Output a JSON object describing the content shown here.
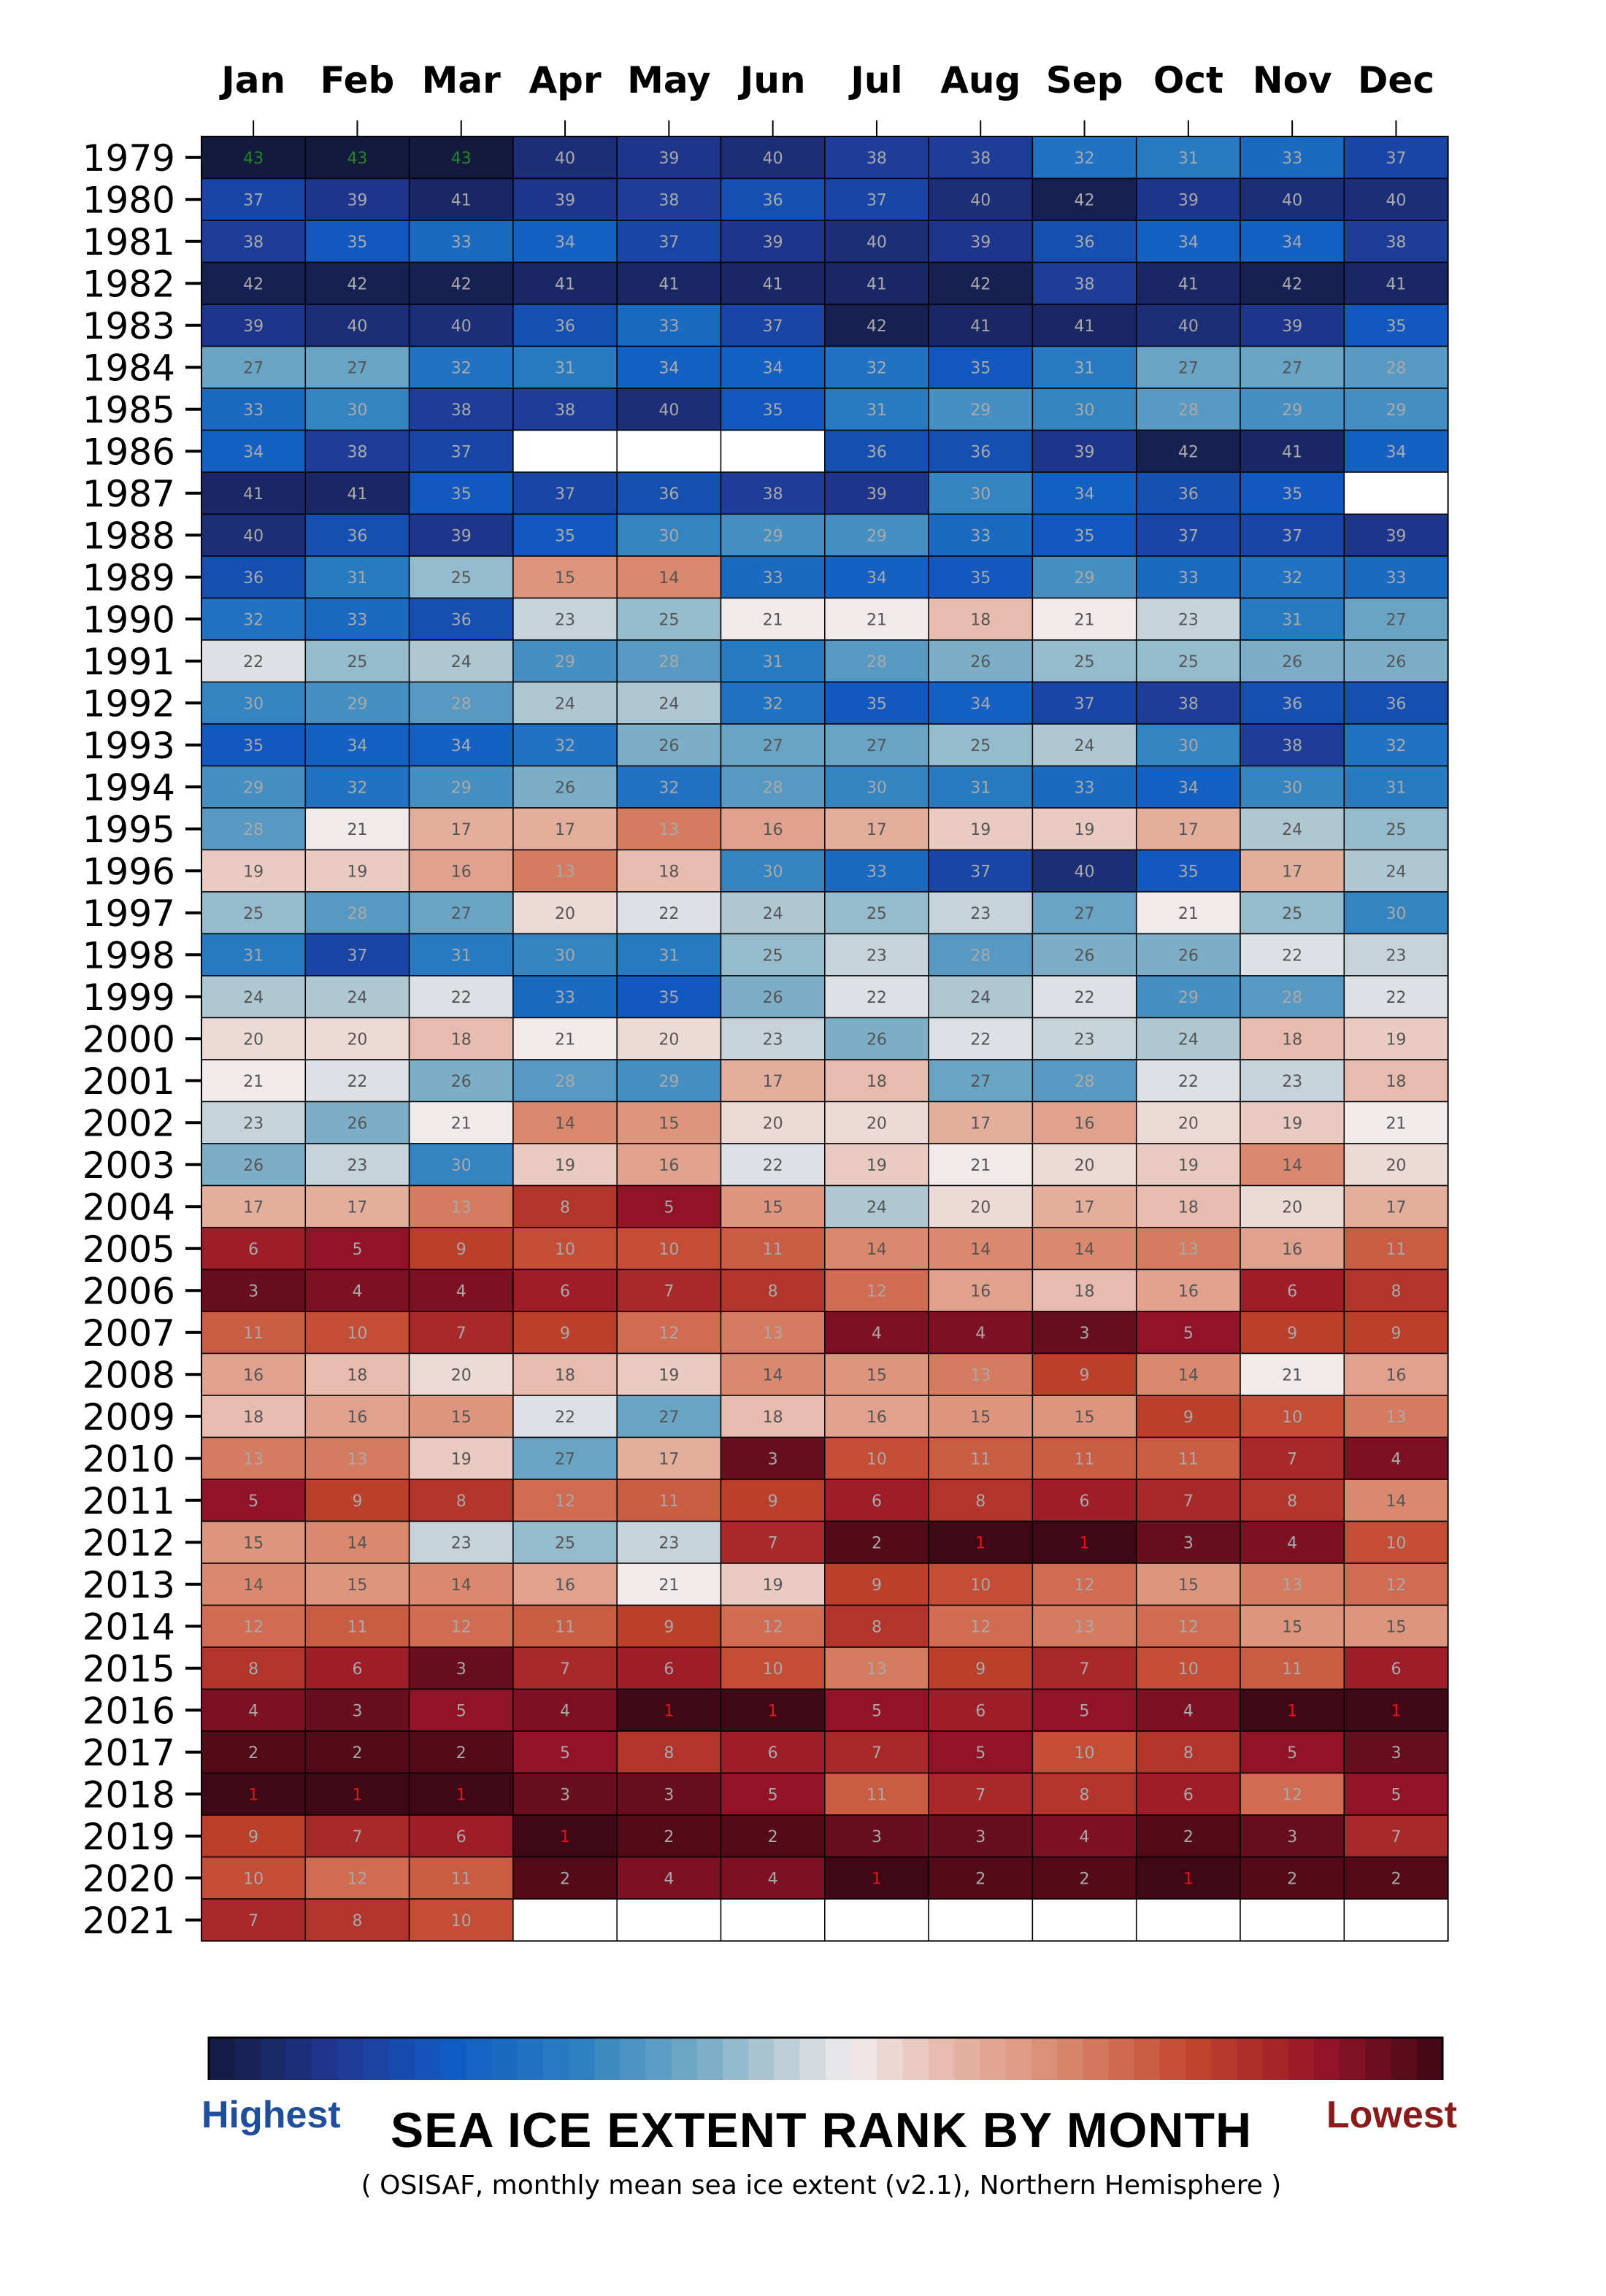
{
  "title": "SEA ICE EXTENT RANK BY MONTH",
  "subtitle": "( OSISAF, monthly mean sea ice extent (v2.1), Northern Hemisphere )",
  "legend": {
    "left_label": "Highest",
    "right_label": "Lowest"
  },
  "colors": {
    "highest_ink": "#1f4e9c",
    "lowest_ink": "#8b1a1a",
    "rank_max_text": "#1f8a1f",
    "rank_min_text": "#e8141a",
    "missing": "#ffffff"
  },
  "chart_data": {
    "type": "heatmap",
    "title": "SEA ICE EXTENT RANK BY MONTH",
    "subtitle": "( OSISAF, monthly mean sea ice extent (v2.1), Northern Hemisphere )",
    "x": [
      "Jan",
      "Feb",
      "Mar",
      "Apr",
      "May",
      "Jun",
      "Jul",
      "Aug",
      "Sep",
      "Oct",
      "Nov",
      "Dec"
    ],
    "y": [
      "1979",
      "1980",
      "1981",
      "1982",
      "1983",
      "1984",
      "1985",
      "1986",
      "1987",
      "1988",
      "1989",
      "1990",
      "1991",
      "1992",
      "1993",
      "1994",
      "1995",
      "1996",
      "1997",
      "1998",
      "1999",
      "2000",
      "2001",
      "2002",
      "2003",
      "2004",
      "2005",
      "2006",
      "2007",
      "2008",
      "2009",
      "2010",
      "2011",
      "2012",
      "2013",
      "2014",
      "2015",
      "2016",
      "2017",
      "2018",
      "2019",
      "2020",
      "2021"
    ],
    "values": [
      [
        43,
        43,
        43,
        40,
        39,
        40,
        38,
        38,
        32,
        31,
        33,
        37
      ],
      [
        37,
        39,
        41,
        39,
        38,
        36,
        37,
        40,
        42,
        39,
        40,
        40
      ],
      [
        38,
        35,
        33,
        34,
        37,
        39,
        40,
        39,
        36,
        34,
        34,
        38
      ],
      [
        42,
        42,
        42,
        41,
        41,
        41,
        41,
        42,
        38,
        41,
        42,
        41
      ],
      [
        39,
        40,
        40,
        36,
        33,
        37,
        42,
        41,
        41,
        40,
        39,
        35
      ],
      [
        27,
        27,
        32,
        31,
        34,
        34,
        32,
        35,
        31,
        27,
        27,
        28
      ],
      [
        33,
        30,
        38,
        38,
        40,
        35,
        31,
        29,
        30,
        28,
        29,
        29
      ],
      [
        34,
        38,
        37,
        null,
        null,
        null,
        36,
        36,
        39,
        42,
        41,
        34
      ],
      [
        41,
        41,
        35,
        37,
        36,
        38,
        39,
        30,
        34,
        36,
        35,
        null
      ],
      [
        40,
        36,
        39,
        35,
        30,
        29,
        29,
        33,
        35,
        37,
        37,
        39
      ],
      [
        36,
        31,
        25,
        15,
        14,
        33,
        34,
        35,
        29,
        33,
        32,
        33
      ],
      [
        32,
        33,
        36,
        23,
        25,
        21,
        21,
        18,
        21,
        23,
        31,
        27
      ],
      [
        22,
        25,
        24,
        29,
        28,
        31,
        28,
        26,
        25,
        25,
        26,
        26
      ],
      [
        30,
        29,
        28,
        24,
        24,
        32,
        35,
        34,
        37,
        38,
        36,
        36
      ],
      [
        35,
        34,
        34,
        32,
        26,
        27,
        27,
        25,
        24,
        30,
        38,
        32
      ],
      [
        29,
        32,
        29,
        26,
        32,
        28,
        30,
        31,
        33,
        34,
        30,
        31
      ],
      [
        28,
        21,
        17,
        17,
        13,
        16,
        17,
        19,
        19,
        17,
        24,
        25
      ],
      [
        19,
        19,
        16,
        13,
        18,
        30,
        33,
        37,
        40,
        35,
        17,
        24
      ],
      [
        25,
        28,
        27,
        20,
        22,
        24,
        25,
        23,
        27,
        21,
        25,
        30
      ],
      [
        31,
        37,
        31,
        30,
        31,
        25,
        23,
        28,
        26,
        26,
        22,
        23
      ],
      [
        24,
        24,
        22,
        33,
        35,
        26,
        22,
        24,
        22,
        29,
        28,
        22
      ],
      [
        20,
        20,
        18,
        21,
        20,
        23,
        26,
        22,
        23,
        24,
        18,
        19
      ],
      [
        21,
        22,
        26,
        28,
        29,
        17,
        18,
        27,
        28,
        22,
        23,
        18
      ],
      [
        23,
        26,
        21,
        14,
        15,
        20,
        20,
        17,
        16,
        20,
        19,
        21
      ],
      [
        26,
        23,
        30,
        19,
        16,
        22,
        19,
        21,
        20,
        19,
        14,
        20
      ],
      [
        17,
        17,
        13,
        8,
        5,
        15,
        24,
        20,
        17,
        18,
        20,
        17
      ],
      [
        6,
        5,
        9,
        10,
        10,
        11,
        14,
        14,
        14,
        13,
        16,
        11
      ],
      [
        3,
        4,
        4,
        6,
        7,
        8,
        12,
        16,
        18,
        16,
        6,
        8
      ],
      [
        11,
        10,
        7,
        9,
        12,
        13,
        4,
        4,
        3,
        5,
        9,
        9
      ],
      [
        16,
        18,
        20,
        18,
        19,
        14,
        15,
        13,
        9,
        14,
        21,
        16
      ],
      [
        18,
        16,
        15,
        22,
        27,
        18,
        16,
        15,
        15,
        9,
        10,
        13
      ],
      [
        13,
        13,
        19,
        27,
        17,
        3,
        10,
        11,
        11,
        11,
        7,
        4
      ],
      [
        5,
        9,
        8,
        12,
        11,
        9,
        6,
        8,
        6,
        7,
        8,
        14
      ],
      [
        15,
        14,
        23,
        25,
        23,
        7,
        2,
        1,
        1,
        3,
        4,
        10
      ],
      [
        14,
        15,
        14,
        16,
        21,
        19,
        9,
        10,
        12,
        15,
        13,
        12
      ],
      [
        12,
        11,
        12,
        11,
        9,
        12,
        8,
        12,
        13,
        12,
        15,
        15
      ],
      [
        8,
        6,
        3,
        7,
        6,
        10,
        13,
        9,
        7,
        10,
        11,
        6
      ],
      [
        4,
        3,
        5,
        4,
        1,
        1,
        5,
        6,
        5,
        4,
        1,
        1
      ],
      [
        2,
        2,
        2,
        5,
        8,
        6,
        7,
        5,
        10,
        8,
        5,
        3
      ],
      [
        1,
        1,
        1,
        3,
        3,
        5,
        11,
        7,
        8,
        6,
        12,
        5
      ],
      [
        9,
        7,
        6,
        1,
        2,
        2,
        3,
        3,
        4,
        2,
        3,
        7
      ],
      [
        10,
        12,
        11,
        2,
        4,
        4,
        1,
        2,
        2,
        1,
        2,
        2
      ],
      [
        7,
        8,
        10,
        null,
        null,
        null,
        null,
        null,
        null,
        null,
        null,
        null
      ]
    ],
    "value_range": [
      1,
      43
    ],
    "colorbar": {
      "left": "Highest",
      "right": "Lowest"
    },
    "grid": true
  }
}
